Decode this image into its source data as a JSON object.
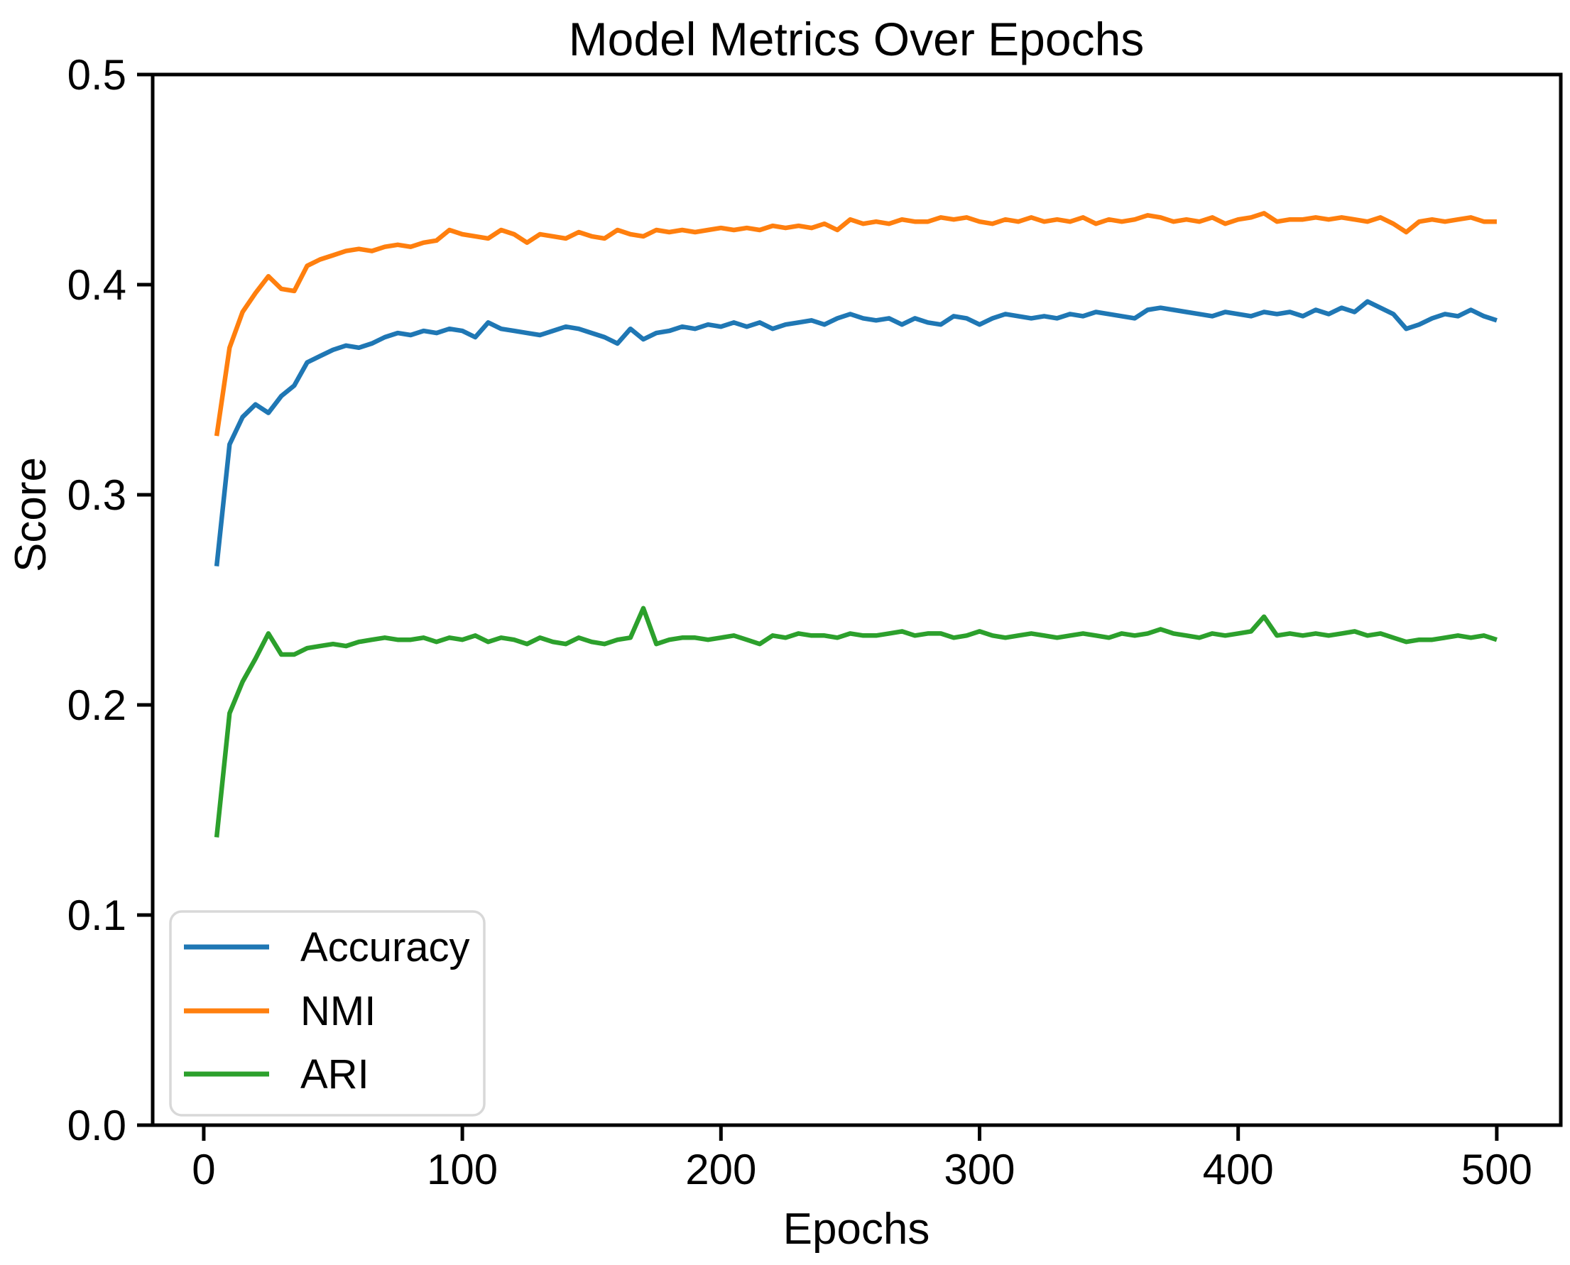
{
  "chart_data": {
    "type": "line",
    "title": "Model Metrics Over Epochs",
    "xlabel": "Epochs",
    "ylabel": "Score",
    "xlim": [
      -19.75,
      524.75
    ],
    "ylim": [
      0.0,
      0.5
    ],
    "x_ticks": [
      0,
      100,
      200,
      300,
      400,
      500
    ],
    "x_tick_labels": [
      "0",
      "100",
      "200",
      "300",
      "400",
      "500"
    ],
    "y_ticks": [
      0.0,
      0.1,
      0.2,
      0.3,
      0.4,
      0.5
    ],
    "y_tick_labels": [
      "0.0",
      "0.1",
      "0.2",
      "0.3",
      "0.4",
      "0.5"
    ],
    "grid": false,
    "legend_position": "lower left",
    "x": [
      5,
      10,
      15,
      20,
      25,
      30,
      35,
      40,
      45,
      50,
      55,
      60,
      65,
      70,
      75,
      80,
      85,
      90,
      95,
      100,
      105,
      110,
      115,
      120,
      125,
      130,
      135,
      140,
      145,
      150,
      155,
      160,
      165,
      170,
      175,
      180,
      185,
      190,
      195,
      200,
      205,
      210,
      215,
      220,
      225,
      230,
      235,
      240,
      245,
      250,
      255,
      260,
      265,
      270,
      275,
      280,
      285,
      290,
      295,
      300,
      305,
      310,
      315,
      320,
      325,
      330,
      335,
      340,
      345,
      350,
      355,
      360,
      365,
      370,
      375,
      380,
      385,
      390,
      395,
      400,
      405,
      410,
      415,
      420,
      425,
      430,
      435,
      440,
      445,
      450,
      455,
      460,
      465,
      470,
      475,
      480,
      485,
      490,
      495,
      500
    ],
    "series": [
      {
        "name": "Accuracy",
        "color": "#1f77b4",
        "values": [
          0.266,
          0.324,
          0.337,
          0.343,
          0.339,
          0.347,
          0.352,
          0.363,
          0.366,
          0.369,
          0.371,
          0.37,
          0.372,
          0.375,
          0.377,
          0.376,
          0.378,
          0.377,
          0.379,
          0.378,
          0.375,
          0.382,
          0.379,
          0.378,
          0.377,
          0.376,
          0.378,
          0.38,
          0.379,
          0.377,
          0.375,
          0.372,
          0.379,
          0.374,
          0.377,
          0.378,
          0.38,
          0.379,
          0.381,
          0.38,
          0.382,
          0.38,
          0.382,
          0.379,
          0.381,
          0.382,
          0.383,
          0.381,
          0.384,
          0.386,
          0.384,
          0.383,
          0.384,
          0.381,
          0.384,
          0.382,
          0.381,
          0.385,
          0.384,
          0.381,
          0.384,
          0.386,
          0.385,
          0.384,
          0.385,
          0.384,
          0.386,
          0.385,
          0.387,
          0.386,
          0.385,
          0.384,
          0.388,
          0.389,
          0.388,
          0.387,
          0.386,
          0.385,
          0.387,
          0.386,
          0.385,
          0.387,
          0.386,
          0.387,
          0.385,
          0.388,
          0.386,
          0.389,
          0.387,
          0.392,
          0.389,
          0.386,
          0.379,
          0.381,
          0.384,
          0.386,
          0.385,
          0.388,
          0.385,
          0.383
        ]
      },
      {
        "name": "NMI",
        "color": "#ff7f0e",
        "values": [
          0.328,
          0.37,
          0.387,
          0.396,
          0.404,
          0.398,
          0.397,
          0.409,
          0.412,
          0.414,
          0.416,
          0.417,
          0.416,
          0.418,
          0.419,
          0.418,
          0.42,
          0.421,
          0.426,
          0.424,
          0.423,
          0.422,
          0.426,
          0.424,
          0.42,
          0.424,
          0.423,
          0.422,
          0.425,
          0.423,
          0.422,
          0.426,
          0.424,
          0.423,
          0.426,
          0.425,
          0.426,
          0.425,
          0.426,
          0.427,
          0.426,
          0.427,
          0.426,
          0.428,
          0.427,
          0.428,
          0.427,
          0.429,
          0.426,
          0.431,
          0.429,
          0.43,
          0.429,
          0.431,
          0.43,
          0.43,
          0.432,
          0.431,
          0.432,
          0.43,
          0.429,
          0.431,
          0.43,
          0.432,
          0.43,
          0.431,
          0.43,
          0.432,
          0.429,
          0.431,
          0.43,
          0.431,
          0.433,
          0.432,
          0.43,
          0.431,
          0.43,
          0.432,
          0.429,
          0.431,
          0.432,
          0.434,
          0.43,
          0.431,
          0.431,
          0.432,
          0.431,
          0.432,
          0.431,
          0.43,
          0.432,
          0.429,
          0.425,
          0.43,
          0.431,
          0.43,
          0.431,
          0.432,
          0.43,
          0.43
        ]
      },
      {
        "name": "ARI",
        "color": "#2ca02c",
        "values": [
          0.137,
          0.196,
          0.211,
          0.222,
          0.234,
          0.224,
          0.224,
          0.227,
          0.228,
          0.229,
          0.228,
          0.23,
          0.231,
          0.232,
          0.231,
          0.231,
          0.232,
          0.23,
          0.232,
          0.231,
          0.233,
          0.23,
          0.232,
          0.231,
          0.229,
          0.232,
          0.23,
          0.229,
          0.232,
          0.23,
          0.229,
          0.231,
          0.232,
          0.246,
          0.229,
          0.231,
          0.232,
          0.232,
          0.231,
          0.232,
          0.233,
          0.231,
          0.229,
          0.233,
          0.232,
          0.234,
          0.233,
          0.233,
          0.232,
          0.234,
          0.233,
          0.233,
          0.234,
          0.235,
          0.233,
          0.234,
          0.234,
          0.232,
          0.233,
          0.235,
          0.233,
          0.232,
          0.233,
          0.234,
          0.233,
          0.232,
          0.233,
          0.234,
          0.233,
          0.232,
          0.234,
          0.233,
          0.234,
          0.236,
          0.234,
          0.233,
          0.232,
          0.234,
          0.233,
          0.234,
          0.235,
          0.242,
          0.233,
          0.234,
          0.233,
          0.234,
          0.233,
          0.234,
          0.235,
          0.233,
          0.234,
          0.232,
          0.23,
          0.231,
          0.231,
          0.232,
          0.233,
          0.232,
          0.233,
          0.231
        ]
      }
    ]
  }
}
